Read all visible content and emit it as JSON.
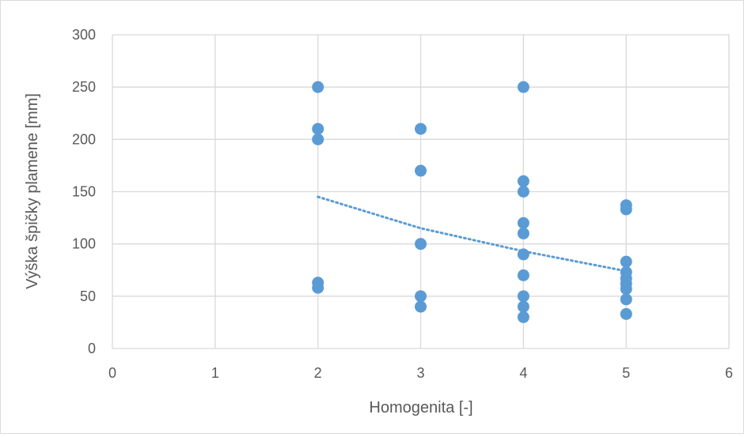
{
  "chart_data": {
    "type": "scatter",
    "title": "",
    "xlabel": "Homogenita [-]",
    "ylabel": "Výška špičky plamene [mm]",
    "xlim": [
      0,
      6
    ],
    "ylim": [
      0,
      300
    ],
    "x_ticks": [
      0,
      1,
      2,
      3,
      4,
      5,
      6
    ],
    "y_ticks": [
      0,
      50,
      100,
      150,
      200,
      250,
      300
    ],
    "x_tick_labels": [
      "0",
      "1",
      "2",
      "3",
      "4",
      "5",
      "6"
    ],
    "y_tick_labels": [
      "0",
      "50",
      "100",
      "150",
      "200",
      "250",
      "300"
    ],
    "grid": true,
    "legend": "none",
    "colors": {
      "points": "#5b9bd5",
      "trendline": "#5b9bd5",
      "grid": "#d9d9d9",
      "text": "#595959"
    },
    "series": [
      {
        "points": [
          {
            "x": 2,
            "y": 250
          },
          {
            "x": 2,
            "y": 210
          },
          {
            "x": 2,
            "y": 200
          },
          {
            "x": 2,
            "y": 63
          },
          {
            "x": 2,
            "y": 58
          },
          {
            "x": 3,
            "y": 210
          },
          {
            "x": 3,
            "y": 170
          },
          {
            "x": 3,
            "y": 100
          },
          {
            "x": 3,
            "y": 50
          },
          {
            "x": 3,
            "y": 40
          },
          {
            "x": 4,
            "y": 250
          },
          {
            "x": 4,
            "y": 160
          },
          {
            "x": 4,
            "y": 150
          },
          {
            "x": 4,
            "y": 120
          },
          {
            "x": 4,
            "y": 110
          },
          {
            "x": 4,
            "y": 90
          },
          {
            "x": 4,
            "y": 70
          },
          {
            "x": 4,
            "y": 50
          },
          {
            "x": 4,
            "y": 40
          },
          {
            "x": 4,
            "y": 30
          },
          {
            "x": 5,
            "y": 137
          },
          {
            "x": 5,
            "y": 133
          },
          {
            "x": 5,
            "y": 83
          },
          {
            "x": 5,
            "y": 73
          },
          {
            "x": 5,
            "y": 67
          },
          {
            "x": 5,
            "y": 62
          },
          {
            "x": 5,
            "y": 57
          },
          {
            "x": 5,
            "y": 47
          },
          {
            "x": 5,
            "y": 33
          }
        ]
      }
    ],
    "trendline": {
      "style": "dotted",
      "points": [
        {
          "x": 2,
          "y": 145
        },
        {
          "x": 3,
          "y": 115
        },
        {
          "x": 4,
          "y": 93
        },
        {
          "x": 5,
          "y": 74
        }
      ]
    }
  }
}
